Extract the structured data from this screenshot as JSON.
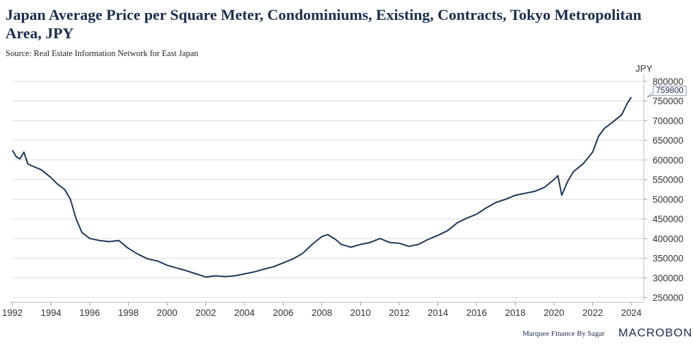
{
  "chart_data": {
    "type": "line",
    "title": "Japan Average Price per Square Meter, Condominiums, Existing, Contracts, Tokyo Metropolitan Area, JPY",
    "subtitle": "Source: Real Estate Information Network for East Japan",
    "ylabel": "JPY",
    "xlabel": "",
    "xlim": [
      1992,
      2024.8
    ],
    "ylim": [
      250000,
      800000
    ],
    "x_ticks": [
      "1992",
      "1994",
      "1996",
      "1998",
      "2000",
      "2002",
      "2004",
      "2006",
      "2008",
      "2010",
      "2012",
      "2014",
      "2016",
      "2018",
      "2020",
      "2022",
      "2024"
    ],
    "y_ticks": [
      "250000",
      "300000",
      "350000",
      "400000",
      "450000",
      "500000",
      "550000",
      "600000",
      "650000",
      "700000",
      "750000",
      "800000"
    ],
    "grid": true,
    "last_value_label": "759800",
    "line_color": "#1c3557",
    "series": [
      {
        "name": "Average Price per Square Meter",
        "x": [
          1992.0,
          1992.2,
          1992.4,
          1992.6,
          1992.8,
          1993.0,
          1993.5,
          1994.0,
          1994.3,
          1994.7,
          1995.0,
          1995.3,
          1995.6,
          1996.0,
          1996.5,
          1997.0,
          1997.5,
          1998.0,
          1998.5,
          1999.0,
          1999.5,
          2000.0,
          2000.5,
          2001.0,
          2001.5,
          2002.0,
          2002.5,
          2003.0,
          2003.5,
          2004.0,
          2004.5,
          2005.0,
          2005.5,
          2006.0,
          2006.5,
          2007.0,
          2007.5,
          2008.0,
          2008.3,
          2008.7,
          2009.0,
          2009.5,
          2010.0,
          2010.5,
          2011.0,
          2011.5,
          2012.0,
          2012.5,
          2013.0,
          2013.5,
          2014.0,
          2014.5,
          2015.0,
          2015.5,
          2016.0,
          2016.5,
          2017.0,
          2017.5,
          2018.0,
          2018.5,
          2019.0,
          2019.5,
          2020.0,
          2020.2,
          2020.4,
          2020.7,
          2021.0,
          2021.5,
          2022.0,
          2022.3,
          2022.6,
          2023.0,
          2023.5,
          2023.8,
          2024.0
        ],
        "values": [
          625000,
          608000,
          603000,
          620000,
          590000,
          585000,
          575000,
          555000,
          540000,
          525000,
          500000,
          450000,
          415000,
          400000,
          395000,
          392000,
          395000,
          375000,
          360000,
          348000,
          343000,
          332000,
          325000,
          318000,
          310000,
          302000,
          305000,
          303000,
          305000,
          310000,
          315000,
          322000,
          328000,
          338000,
          348000,
          362000,
          385000,
          405000,
          410000,
          398000,
          385000,
          378000,
          385000,
          390000,
          400000,
          390000,
          388000,
          380000,
          385000,
          398000,
          408000,
          420000,
          440000,
          452000,
          462000,
          478000,
          492000,
          500000,
          510000,
          515000,
          520000,
          530000,
          550000,
          560000,
          510000,
          545000,
          570000,
          590000,
          620000,
          660000,
          680000,
          695000,
          715000,
          745000,
          759800
        ]
      }
    ]
  },
  "footer": {
    "credit": "Marquee Finance By Sagar",
    "logo": "MACROBOND"
  }
}
